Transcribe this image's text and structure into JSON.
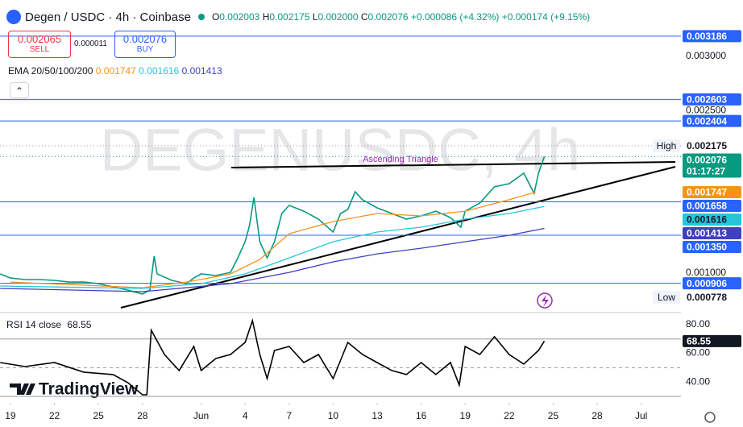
{
  "header": {
    "symbol": "Degen / USDC · 4h · Coinbase",
    "open_label": "O",
    "open": "0.002003",
    "high_label": "H",
    "high": "0.002175",
    "low_label": "L",
    "low": "0.002000",
    "close_label": "C",
    "close": "0.002076",
    "change": "+0.000086 (+4.32%)",
    "change2": "+0.000174 (+9.15%)"
  },
  "trade": {
    "sell_price": "0.002065",
    "sell_label": "SELL",
    "spread": "0.000011",
    "buy_price": "0.002076",
    "buy_label": "BUY"
  },
  "branding": "TradingView",
  "chart_data": [
    {
      "type": "line",
      "watermark": "DEGENUSDC, 4h",
      "indicator_label": "EMA 20/50/100/200",
      "annotation": "Ascending Triangle",
      "x": [
        -0.7,
        0,
        1,
        2,
        3,
        4,
        5,
        6,
        7,
        8,
        9,
        9.5,
        9.8,
        10,
        11,
        12,
        12.5,
        13,
        14,
        15,
        15.5,
        16,
        16.3,
        16.6,
        17,
        17.5,
        18,
        18.5,
        19,
        20,
        21,
        22,
        22.5,
        23,
        23.5,
        24,
        25,
        26,
        27,
        28,
        29,
        30,
        30.7,
        31,
        32,
        33,
        34,
        35,
        35.7,
        36,
        36.4
      ],
      "xlim": [
        -0.71,
        45.71
      ],
      "xticks": [
        {
          "value": 0,
          "label": "19"
        },
        {
          "value": 3,
          "label": "22"
        },
        {
          "value": 6,
          "label": "25"
        },
        {
          "value": 9,
          "label": "28"
        },
        {
          "value": 13,
          "label": "Jun"
        },
        {
          "value": 16,
          "label": "4"
        },
        {
          "value": 19,
          "label": "7"
        },
        {
          "value": 22,
          "label": "10"
        },
        {
          "value": 25,
          "label": "13"
        },
        {
          "value": 28,
          "label": "16"
        },
        {
          "value": 31,
          "label": "19"
        },
        {
          "value": 34,
          "label": "22"
        },
        {
          "value": 37,
          "label": "25"
        },
        {
          "value": 40,
          "label": "28"
        },
        {
          "value": 43,
          "label": "Jul"
        }
      ],
      "ylim": [
        0.000636,
        0.00352
      ],
      "yticks": [
        {
          "value": 0.003,
          "label": "0.003000"
        },
        {
          "value": 0.0025,
          "label": "0.002500"
        },
        {
          "value": 0.001,
          "label": "0.001000"
        }
      ],
      "series": [
        {
          "color": "#089981",
          "values": [
            0.000993,
            0.000955,
            0.000941,
            0.000941,
            0.000933,
            0.000918,
            0.000918,
            0.000903,
            0.000874,
            0.000844,
            0.000807,
            0.000844,
            0.001156,
            0.000993,
            0.000933,
            0.000903,
            0.000955,
            0.000993,
            0.000978,
            0.001007,
            0.001141,
            0.00129,
            0.001439,
            0.001699,
            0.00129,
            0.001141,
            0.00129,
            0.00155,
            0.001625,
            0.001572,
            0.001498,
            0.001379,
            0.00155,
            0.001587,
            0.001751,
            0.001677,
            0.001602,
            0.00155,
            0.001498,
            0.001528,
            0.001572,
            0.001513,
            0.001424,
            0.001572,
            0.001647,
            0.001796,
            0.001825,
            0.001922,
            0.001736,
            0.001922,
            0.002076
          ]
        },
        {
          "color": "#f7931a",
          "x": [
            0,
            9,
            12,
            15,
            17,
            19,
            22,
            25,
            28,
            31,
            34,
            35.8
          ],
          "values": [
            0.000918,
            0.000866,
            0.000918,
            0.000993,
            0.001126,
            0.001364,
            0.001476,
            0.00155,
            0.001528,
            0.001572,
            0.001677,
            0.001747
          ]
        },
        {
          "color": "#26c6da",
          "x": [
            -0.7,
            9,
            13,
            16,
            19,
            22,
            25,
            28,
            31,
            34,
            36.4
          ],
          "values": [
            0.000881,
            0.000859,
            0.000903,
            0.000993,
            0.001141,
            0.00129,
            0.001379,
            0.001424,
            0.001498,
            0.00155,
            0.001616
          ]
        },
        {
          "color": "#3f3fbf",
          "x": [
            -0.7,
            9,
            15,
            19,
            22,
            25,
            28,
            31,
            34,
            36.4
          ],
          "values": [
            0.000859,
            0.000829,
            0.000903,
            0.001007,
            0.001104,
            0.001178,
            0.00123,
            0.00129,
            0.001349,
            0.001413
          ]
        }
      ],
      "levels": [
        0.003186,
        0.002603,
        0.002404,
        0.001658,
        {
          "value": 0.00135,
          "label": "0.001350"
        },
        0.000906
      ],
      "level_color": "#2962ff",
      "high_label": "High",
      "high": 0.002175,
      "low_label": "Low",
      "low": 0.000778,
      "countdown": "01:17:27"
    },
    {
      "type": "line",
      "title": "RSI 14 close",
      "x": [
        -0.7,
        1,
        3,
        5,
        7,
        8,
        9,
        9.3,
        9.6,
        10.5,
        11.5,
        12.5,
        13,
        14,
        15,
        16,
        16.5,
        17,
        17.5,
        18,
        19,
        20,
        21,
        22,
        23,
        24,
        25,
        26,
        27,
        28,
        29,
        30,
        30.6,
        31,
        32,
        33,
        34,
        35,
        36,
        36.4
      ],
      "xlim": [
        -0.71,
        45.71
      ],
      "ylim": [
        25.5,
        88.4
      ],
      "yticks": [
        {
          "value": 80,
          "label": "80.00"
        },
        {
          "value": 60,
          "label": "60.00"
        },
        {
          "value": 40,
          "label": "40.00"
        }
      ],
      "levels": [
        70,
        50,
        30
      ],
      "series": [
        {
          "color": "#000000",
          "values": [
            53.6,
            50.8,
            53.6,
            46.9,
            45.2,
            39.6,
            31.1,
            31.1,
            76.1,
            59.2,
            48,
            64.8,
            48,
            56.4,
            59.2,
            67.6,
            82.8,
            59.2,
            42.4,
            62,
            64.8,
            53.6,
            59.2,
            42.4,
            67.6,
            59.2,
            53.6,
            48,
            45.2,
            53.6,
            45.2,
            53.6,
            37.9,
            64.8,
            59.2,
            71.6,
            59.2,
            52.5,
            62,
            68.55
          ]
        }
      ]
    }
  ]
}
